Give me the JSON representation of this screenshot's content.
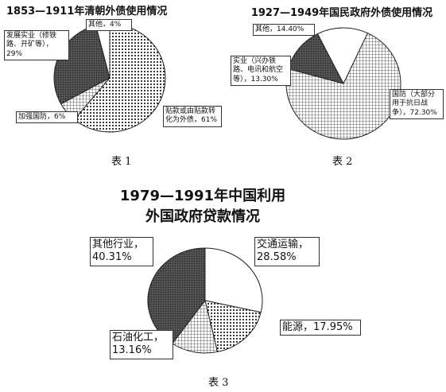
{
  "chart_data": [
    {
      "type": "pie",
      "title": "1853—1911年清朝外债使用情况",
      "caption": "表 1",
      "categories": [
        "贴款或由贴款转化为外债",
        "加强国防",
        "发展实业（修铁路、开矿等）",
        "其他"
      ],
      "values": [
        61,
        6,
        29,
        4
      ],
      "value_labels": [
        "，61%",
        "，6%",
        "，29%",
        "，4%"
      ],
      "colors": [
        "dots",
        "grid",
        "dark",
        "white"
      ]
    },
    {
      "type": "pie",
      "title": "1927—1949年国民政府外债使用情况",
      "caption": "表 2",
      "categories": [
        "国防（大部分用于抗日战争）",
        "实业（兴办铁路、电讯和航空等）",
        "其他"
      ],
      "values": [
        72.3,
        13.3,
        14.4
      ],
      "value_labels": [
        "，72.30%",
        "，13.30%",
        "，14.40%"
      ],
      "colors": [
        "grid",
        "dark",
        "white"
      ]
    },
    {
      "type": "pie",
      "title": "1979—1991年中国利用外国政府贷款情况",
      "caption": "表 3",
      "categories": [
        "交通运输",
        "能源",
        "石油化工",
        "其他行业"
      ],
      "values": [
        28.58,
        17.95,
        13.16,
        40.31
      ],
      "value_labels": [
        "，28.58%",
        "，17.95%",
        "，13.16%",
        "，40.31%"
      ],
      "colors": [
        "white",
        "dots",
        "grid",
        "dark"
      ]
    }
  ]
}
